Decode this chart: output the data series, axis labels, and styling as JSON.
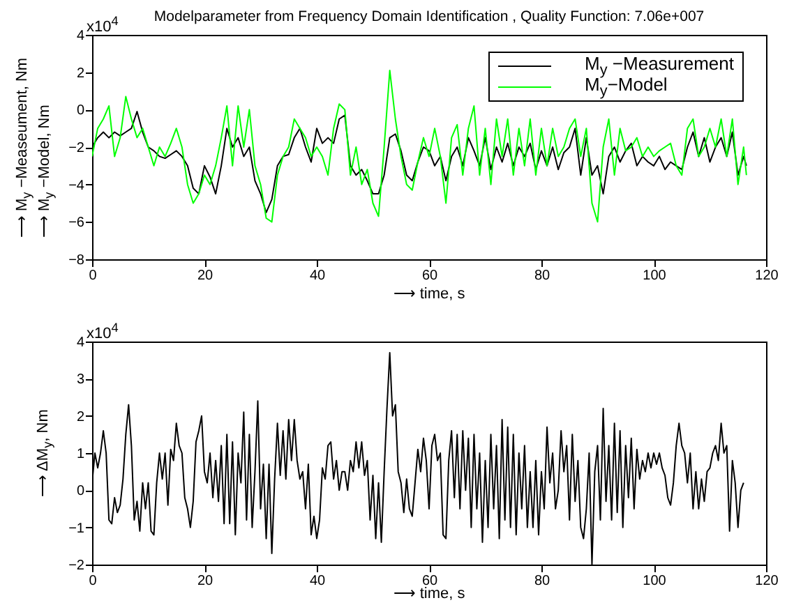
{
  "chart_data": [
    {
      "type": "line",
      "title": "Modelparameter from Frequency Domain Identification , Quality Function: 7.06e+007",
      "xlabel": "⟶ time, s",
      "ylabel": "⟶ M$_{y}$ −Measeument, Nm\n⟶ M$_{y}$ −Model, Nm",
      "annotations": [
        "x10$^{4}$"
      ],
      "legend": "top right",
      "xlim": [
        0,
        120
      ],
      "xticks": [
        0,
        20,
        40,
        60,
        80,
        100,
        120
      ],
      "ylim": [
        -8,
        4
      ],
      "yticks": [
        -8,
        -6,
        -4,
        -2,
        0,
        2,
        4
      ],
      "x": [
        0,
        1,
        2,
        3,
        4,
        5,
        6,
        7,
        8,
        9,
        10,
        11,
        12,
        13,
        14,
        15,
        16,
        17,
        18,
        19,
        20,
        21,
        22,
        23,
        24,
        25,
        26,
        27,
        28,
        29,
        30,
        31,
        32,
        33,
        34,
        35,
        36,
        37,
        38,
        39,
        40,
        41,
        42,
        43,
        44,
        45,
        46,
        47,
        48,
        49,
        50,
        51,
        52,
        53,
        54,
        55,
        56,
        57,
        58,
        59,
        60,
        61,
        62,
        63,
        64,
        65,
        66,
        67,
        68,
        69,
        70,
        71,
        72,
        73,
        74,
        75,
        76,
        77,
        78,
        79,
        80,
        81,
        82,
        83,
        84,
        85,
        86,
        87,
        88,
        89,
        90,
        91,
        92,
        93,
        94,
        95,
        96,
        97,
        98,
        99,
        100,
        101,
        102,
        103,
        104,
        105,
        106,
        107,
        108,
        109,
        110,
        111,
        112,
        113,
        114,
        115,
        116,
        116.5
      ],
      "series": [
        {
          "name": "M$_{y}$ −Measurement",
          "color": "#000000",
          "values": [
            -2,
            -1.5,
            -1.2,
            -1.5,
            -1.2,
            -1.4,
            -1.2,
            -1.0,
            -0.1,
            -1.2,
            -2.0,
            -2.2,
            -2.5,
            -2.6,
            -2.4,
            -2.2,
            -2.5,
            -3.0,
            -4.2,
            -4.5,
            -3.0,
            -3.6,
            -4.5,
            -3.0,
            -1.0,
            -2.0,
            -1.5,
            -2.5,
            -2.0,
            -3.8,
            -4.5,
            -5.5,
            -4.8,
            -3.0,
            -2.5,
            -2.4,
            -1.5,
            -1.0,
            -2.0,
            -2.8,
            -1.0,
            -1.8,
            -1.5,
            -1.8,
            -0.5,
            -0.3,
            -3.0,
            -3.5,
            -3.2,
            -3.8,
            -4.5,
            -4.5,
            -3.5,
            -1.5,
            -1.3,
            -2.2,
            -3.5,
            -3.8,
            -2.8,
            -2.0,
            -2.2,
            -3.0,
            -2.5,
            -3.8,
            -2.5,
            -2.0,
            -3.0,
            -1.5,
            -2.2,
            -3.0,
            -1.5,
            -3.2,
            -2.0,
            -2.8,
            -1.8,
            -3.0,
            -2.0,
            -2.5,
            -1.8,
            -3.2,
            -2.2,
            -3.0,
            -2.0,
            -3.2,
            -2.3,
            -2.0,
            -1.0,
            -3.5,
            -1.5,
            -3.5,
            -3.0,
            -4.5,
            -2.5,
            -2.0,
            -2.8,
            -2.2,
            -1.8,
            -3.0,
            -2.5,
            -2.8,
            -3.0,
            -2.5,
            -3.2,
            -2.8,
            -3.0,
            -3.2,
            -2.0,
            -1.2,
            -2.5,
            -1.5,
            -2.8,
            -2.0,
            -1.5,
            -2.5,
            -1.2,
            -3.5,
            -2.5,
            -3.0
          ]
        },
        {
          "name": "M$_{y}$−Model",
          "color": "#00ff00",
          "values": [
            -2.5,
            -1.0,
            -0.5,
            0.2,
            -2.5,
            -1.5,
            0.7,
            -0.5,
            -1.5,
            -1.0,
            -2.0,
            -3.0,
            -2.0,
            -2.5,
            -1.8,
            -1.0,
            -2.0,
            -4.0,
            -5.0,
            -4.5,
            -3.5,
            -4.0,
            -3.0,
            -1.5,
            0.2,
            -3.0,
            0.2,
            -2.0,
            0,
            -3.0,
            -4.0,
            -5.8,
            -6.0,
            -3.5,
            -2.5,
            -2.0,
            -0.5,
            -1.0,
            -1.5,
            -2.5,
            -2.0,
            -2.5,
            -3.5,
            -1.0,
            0.3,
            0,
            -3.5,
            -2.0,
            -4.0,
            -3.2,
            -5.0,
            -5.7,
            -2.0,
            2.1,
            -0.5,
            -2.5,
            -4.0,
            -4.3,
            -2.8,
            -1.5,
            -2.5,
            -1.0,
            -2.5,
            -5.0,
            -1.5,
            -0.8,
            -3.5,
            -1.0,
            0.2,
            -3.5,
            -1.0,
            -4.0,
            -0.5,
            -2.5,
            -0.5,
            -3.5,
            -1.0,
            -3.0,
            -0.5,
            -3.5,
            -1.0,
            -3.0,
            -1.0,
            -2.5,
            -2.0,
            -1.0,
            -0.5,
            -2.5,
            -1.0,
            -5.0,
            -6.0,
            -2.0,
            -0.5,
            -3.5,
            -1.0,
            -2.2,
            -2.0,
            -1.5,
            -2.5,
            -2.0,
            -2.5,
            -2.2,
            -2.0,
            -1.8,
            -3.0,
            -3.5,
            -1.0,
            -0.5,
            -2.5,
            -2.0,
            -1.0,
            -2.0,
            -0.5,
            -2.5,
            -0.5,
            -4.0,
            -2.0,
            -3.5
          ]
        }
      ]
    },
    {
      "type": "line",
      "xlabel": "⟶ time, s",
      "ylabel": "⟶ ΔM$_{y}$, Nm",
      "annotations": [
        "x10$^{4}$"
      ],
      "xlim": [
        0,
        120
      ],
      "xticks": [
        0,
        20,
        40,
        60,
        80,
        100,
        120
      ],
      "ylim": [
        -2,
        4
      ],
      "yticks": [
        -2,
        -1,
        0,
        1,
        2,
        3,
        4
      ],
      "x": [
        0,
        0.5,
        1,
        1.5,
        2,
        2.5,
        3,
        3.5,
        4,
        4.5,
        5,
        5.5,
        6,
        6.5,
        7,
        7.5,
        8,
        8.5,
        9,
        9.5,
        10,
        10.5,
        11,
        11.5,
        12,
        12.5,
        13,
        13.5,
        14,
        14.5,
        15,
        15.5,
        16,
        16.5,
        17,
        17.5,
        18,
        18.5,
        19,
        19.5,
        20,
        20.5,
        21,
        21.5,
        22,
        22.5,
        23,
        23.5,
        24,
        24.5,
        25,
        25.5,
        26,
        26.5,
        27,
        27.5,
        28,
        28.5,
        29,
        29.5,
        30,
        30.5,
        31,
        31.5,
        32,
        32.5,
        33,
        33.5,
        34,
        34.5,
        35,
        35.5,
        36,
        36.5,
        37,
        37.5,
        38,
        38.5,
        39,
        39.5,
        40,
        40.5,
        41,
        41.5,
        42,
        42.5,
        43,
        43.5,
        44,
        44.5,
        45,
        45.5,
        46,
        46.5,
        47,
        47.5,
        48,
        48.5,
        49,
        49.5,
        50,
        50.5,
        51,
        51.5,
        52,
        52.5,
        53,
        53.5,
        54,
        54.5,
        55,
        55.5,
        56,
        56.5,
        57,
        57.5,
        58,
        58.5,
        59,
        59.5,
        60,
        60.5,
        61,
        61.5,
        62,
        62.5,
        63,
        63.5,
        64,
        64.5,
        65,
        65.5,
        66,
        66.5,
        67,
        67.5,
        68,
        68.5,
        69,
        69.5,
        70,
        70.5,
        71,
        71.5,
        72,
        72.5,
        73,
        73.5,
        74,
        74.5,
        75,
        75.5,
        76,
        76.5,
        77,
        77.5,
        78,
        78.5,
        79,
        79.5,
        80,
        80.5,
        81,
        81.5,
        82,
        82.5,
        83,
        83.5,
        84,
        84.5,
        85,
        85.5,
        86,
        86.5,
        87,
        87.5,
        88,
        88.5,
        89,
        89.5,
        90,
        90.5,
        91,
        91.5,
        92,
        92.5,
        93,
        93.5,
        94,
        94.5,
        95,
        95.5,
        96,
        96.5,
        97,
        97.5,
        98,
        98.5,
        99,
        99.5,
        100,
        100.5,
        101,
        101.5,
        102,
        102.5,
        103,
        103.5,
        104,
        104.5,
        105,
        105.5,
        106,
        106.5,
        107,
        107.5,
        108,
        108.5,
        109,
        109.5,
        110,
        110.5,
        111,
        111.5,
        112,
        112.5,
        113,
        113.5,
        114,
        114.5,
        115,
        115.5,
        116
      ],
      "series": [
        {
          "color": "#000000",
          "values": [
            0.2,
            1.0,
            0.6,
            1.0,
            1.6,
            1.0,
            -0.8,
            -0.9,
            -0.2,
            -0.6,
            -0.4,
            0.3,
            1.5,
            2.3,
            1.2,
            -0.8,
            -0.3,
            -1.1,
            0.2,
            -0.5,
            0.2,
            -1.1,
            -1.2,
            0.2,
            1.0,
            0.3,
            1.0,
            -0.4,
            1.1,
            0.8,
            1.8,
            1.2,
            1.0,
            -0.2,
            -0.5,
            -1.0,
            -0.3,
            1.3,
            1.6,
            2.0,
            0.5,
            0.2,
            1.0,
            -0.2,
            0.8,
            -0.3,
            1.2,
            -0.9,
            1.5,
            -0.9,
            1.3,
            -1.2,
            1.0,
            0.2,
            2.1,
            -0.8,
            1.5,
            -1.0,
            0.5,
            2.4,
            -0.5,
            0.7,
            -1.3,
            0.7,
            -1.7,
            0.3,
            1.8,
            0.4,
            1.6,
            0.3,
            1.9,
            0.8,
            1.9,
            0.8,
            0.3,
            0.5,
            -0.5,
            0.7,
            -1.2,
            -0.7,
            -1.3,
            -0.8,
            0.6,
            0.3,
            1.2,
            1.3,
            0.3,
            0.8,
            0.0,
            0.5,
            0.5,
            0.0,
            0.8,
            0.5,
            1.3,
            0.6,
            1.3,
            0.4,
            0.8,
            -0.8,
            0.4,
            -1.3,
            0.2,
            -1.4,
            0.5,
            2.2,
            3.7,
            2.0,
            2.3,
            0.5,
            0.2,
            -0.6,
            0.3,
            -0.5,
            -0.7,
            0.2,
            1.1,
            0.5,
            1.4,
            0.8,
            -0.5,
            1.2,
            1.5,
            0.8,
            1.0,
            -1.2,
            -1.3,
            0.8,
            1.6,
            -0.2,
            1.5,
            -0.5,
            1.6,
            0.0,
            1.4,
            -1.0,
            1.5,
            -0.5,
            1.0,
            -1.4,
            0.8,
            -1.0,
            1.5,
            -0.5,
            1.2,
            -1.3,
            1.9,
            -0.8,
            1.7,
            -1.0,
            1.5,
            -1.2,
            1.0,
            -0.5,
            1.2,
            -1.0,
            0.5,
            -1.0,
            0.8,
            -1.2,
            0.5,
            -0.5,
            1.7,
            0.2,
            1.0,
            -0.5,
            0.0,
            1.6,
            0.5,
            1.2,
            -0.8,
            1.5,
            -0.3,
            0.8,
            -1.0,
            -1.3,
            -0.5,
            1.0,
            -2.0,
            0.5,
            1.2,
            -0.8,
            2.2,
            -0.3,
            1.2,
            -0.8,
            1.8,
            -0.6,
            1.6,
            -1.0,
            1.2,
            -0.2,
            1.4,
            -0.5,
            1.1,
            0.3,
            0.8,
            0.5,
            1.0,
            0.6,
            1.0,
            0.7,
            1.0,
            0.6,
            0.4,
            -0.2,
            -0.4,
            0.2,
            1.2,
            1.8,
            1.2,
            1.0,
            0.2,
            1.0,
            -0.5,
            0.5,
            -0.5,
            0.3,
            -0.3,
            0.5,
            0.6,
            1.0,
            1.2,
            0.8,
            1.8,
            1.0,
            1.2,
            -1.1,
            0.8,
            0.2,
            -1.0,
            0.0,
            0.2
          ]
        }
      ]
    }
  ]
}
